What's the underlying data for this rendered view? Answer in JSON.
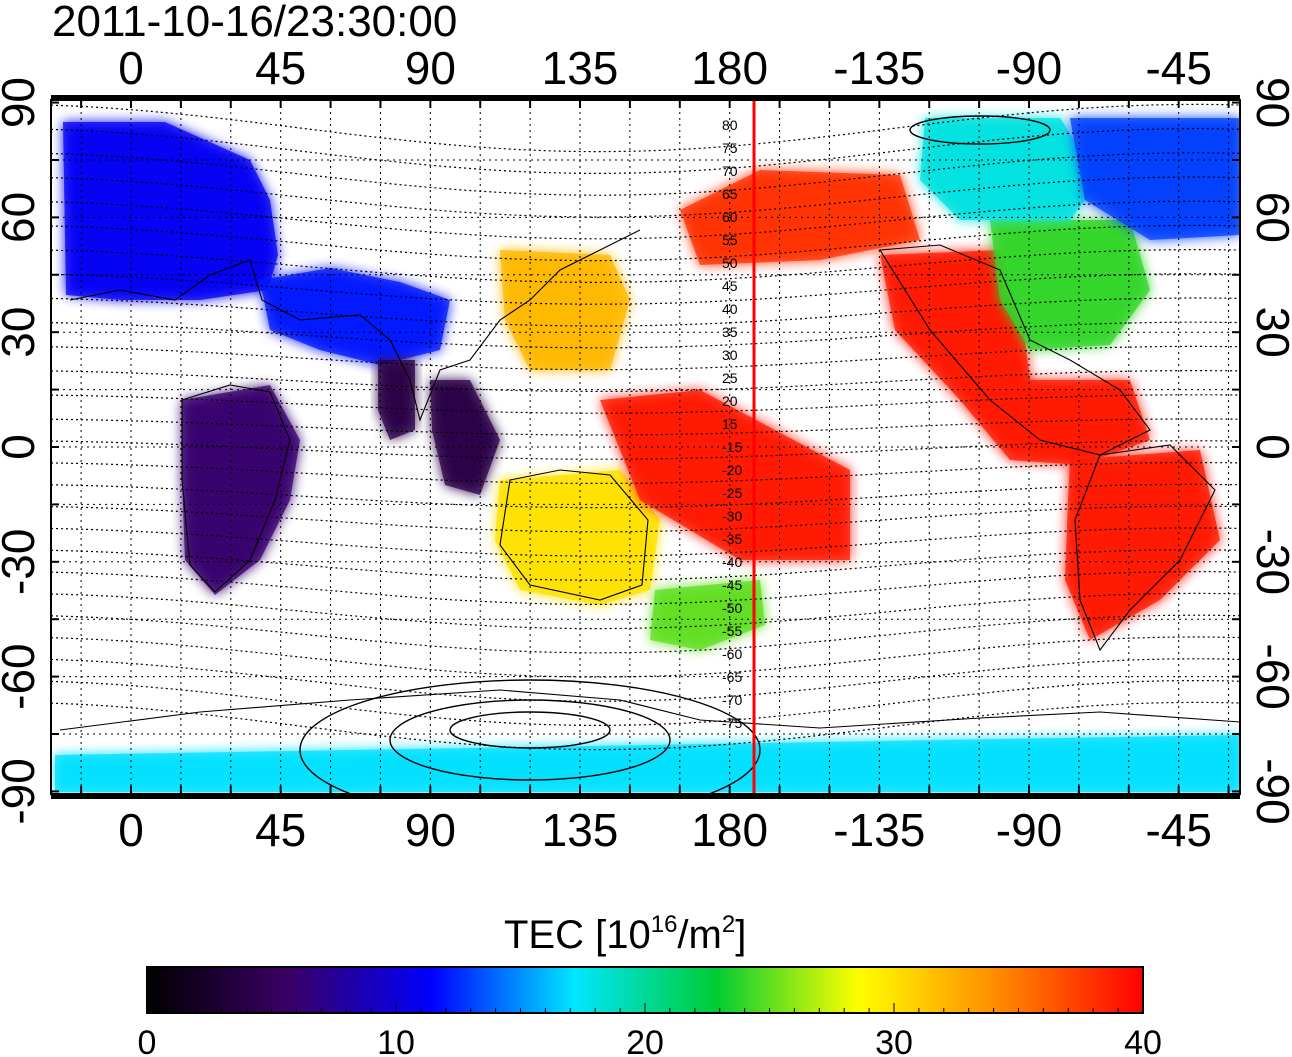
{
  "title": "2011-10-16/23:30:00",
  "lon_labels": [
    "0",
    "45",
    "90",
    "135",
    "180",
    "-135",
    "-90",
    "-45"
  ],
  "lat_labels": [
    "90",
    "60",
    "30",
    "0",
    "-30",
    "-60",
    "-90"
  ],
  "contour_labels": [
    "80",
    "75",
    "70",
    "65",
    "60",
    "55",
    "50",
    "45",
    "40",
    "35",
    "30",
    "25",
    "20",
    "15",
    "-15",
    "-20",
    "-25",
    "-30",
    "-35",
    "-40",
    "-45",
    "-50",
    "-55",
    "-60",
    "-65",
    "-70",
    "-75"
  ],
  "colorbar": {
    "title_main": "TEC  [10",
    "title_sup1": "16",
    "title_mid": "/m",
    "title_sup2": "2",
    "title_end": "]",
    "ticks": [
      "0",
      "10",
      "20",
      "30",
      "40"
    ],
    "min": 0,
    "max": 40,
    "colors": [
      "#000000",
      "#3a0066",
      "#0000ff",
      "#00e6ff",
      "#00cc33",
      "#ffff00",
      "#ff8800",
      "#ff0000"
    ]
  },
  "terminator_longitude": -172.5,
  "tec_regions": [
    {
      "name": "europe",
      "level": 11
    },
    {
      "name": "central-asia",
      "level": 12
    },
    {
      "name": "africa",
      "level": 6
    },
    {
      "name": "india",
      "level": 4
    },
    {
      "name": "southeast-asia",
      "level": 4
    },
    {
      "name": "east-asia",
      "level": 32
    },
    {
      "name": "australia",
      "level": 30
    },
    {
      "name": "new-zealand",
      "level": 25
    },
    {
      "name": "pacific",
      "level": 39
    },
    {
      "name": "alaska",
      "level": 38
    },
    {
      "name": "north-america-west",
      "level": 39
    },
    {
      "name": "north-america-east",
      "level": 24
    },
    {
      "name": "canada-arctic",
      "level": 18
    },
    {
      "name": "greenland",
      "level": 13
    },
    {
      "name": "south-america",
      "level": 39
    },
    {
      "name": "antarctica",
      "level": 17
    }
  ]
}
